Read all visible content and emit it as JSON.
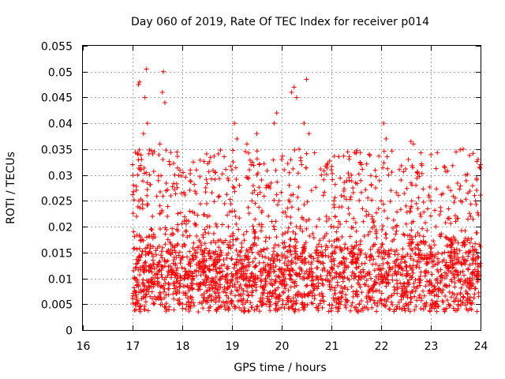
{
  "chart_data": {
    "type": "scatter",
    "title": "Day 060 of 2019, Rate Of TEC Index for receiver p014",
    "xlabel": "GPS time / hours",
    "ylabel": "ROTI / TECUs",
    "xlim": [
      16,
      24
    ],
    "ylim": [
      0,
      0.055
    ],
    "xticks": [
      16,
      17,
      18,
      19,
      20,
      21,
      22,
      23,
      24
    ],
    "xtick_labels": [
      "16",
      "17",
      "18",
      "19",
      "20",
      "21",
      "22",
      "23",
      "24"
    ],
    "yticks": [
      0,
      0.005,
      0.01,
      0.015,
      0.02,
      0.025,
      0.03,
      0.035,
      0.04,
      0.045,
      0.05,
      0.055
    ],
    "ytick_labels": [
      "0",
      "0.005",
      "0.01",
      "0.015",
      "0.02",
      "0.025",
      "0.03",
      "0.035",
      "0.04",
      "0.045",
      "0.05",
      "0.055"
    ],
    "grid": true,
    "marker": "+",
    "color": "#ff0000",
    "series": [
      {
        "name": "ROTI",
        "x": [
          17.0,
          17.02,
          17.04,
          17.06,
          17.08,
          17.1,
          17.12,
          17.14,
          17.16,
          17.18,
          17.2,
          17.22,
          17.25,
          17.28,
          17.3,
          17.33,
          17.36,
          17.4,
          17.45,
          17.5,
          17.55,
          17.6,
          17.62,
          17.65,
          17.7,
          17.75,
          17.8,
          17.85,
          17.9,
          17.95,
          18.0,
          18.05,
          18.1,
          18.15,
          18.2,
          18.3,
          18.4,
          18.5,
          18.55,
          18.6,
          18.7,
          18.8,
          18.9,
          19.0,
          19.05,
          19.1,
          19.15,
          19.2,
          19.3,
          19.35,
          19.4,
          19.45,
          19.5,
          19.55,
          19.6,
          19.7,
          19.8,
          19.85,
          19.9,
          19.95,
          20.0,
          20.05,
          20.1,
          20.15,
          20.2,
          20.25,
          20.3,
          20.35,
          20.4,
          20.45,
          20.5,
          20.55,
          20.6,
          20.7,
          20.8,
          20.9,
          21.0,
          21.05,
          21.1,
          21.2,
          21.3,
          21.4,
          21.5,
          21.6,
          21.7,
          21.8,
          21.9,
          22.0,
          22.05,
          22.1,
          22.15,
          22.2,
          22.3,
          22.4,
          22.5,
          22.55,
          22.6,
          22.65,
          22.7,
          22.8,
          22.9,
          23.0,
          23.1,
          23.2,
          23.3,
          23.4,
          23.5,
          23.6,
          23.65,
          23.7,
          23.8,
          23.9,
          23.95,
          24.0
        ],
        "y": [
          0.032,
          0.028,
          0.01,
          0.012,
          0.022,
          0.03,
          0.0475,
          0.048,
          0.018,
          0.033,
          0.025,
          0.038,
          0.045,
          0.0505,
          0.04,
          0.015,
          0.012,
          0.022,
          0.018,
          0.01,
          0.036,
          0.046,
          0.05,
          0.044,
          0.022,
          0.032,
          0.015,
          0.03,
          0.012,
          0.009,
          0.014,
          0.01,
          0.018,
          0.023,
          0.008,
          0.015,
          0.012,
          0.022,
          0.02,
          0.01,
          0.013,
          0.017,
          0.012,
          0.023,
          0.04,
          0.037,
          0.028,
          0.016,
          0.036,
          0.031,
          0.025,
          0.019,
          0.038,
          0.032,
          0.02,
          0.028,
          0.021,
          0.04,
          0.042,
          0.025,
          0.033,
          0.031,
          0.022,
          0.028,
          0.046,
          0.047,
          0.045,
          0.035,
          0.032,
          0.04,
          0.0485,
          0.038,
          0.027,
          0.02,
          0.03,
          0.022,
          0.031,
          0.025,
          0.019,
          0.026,
          0.021,
          0.03,
          0.017,
          0.032,
          0.023,
          0.028,
          0.019,
          0.025,
          0.04,
          0.037,
          0.03,
          0.027,
          0.02,
          0.029,
          0.024,
          0.033,
          0.0365,
          0.036,
          0.028,
          0.022,
          0.017,
          0.025,
          0.02,
          0.023,
          0.018,
          0.027,
          0.021,
          0.025,
          0.035,
          0.03,
          0.022,
          0.025,
          0.033,
          0.032
        ]
      }
    ],
    "bulk_distribution": {
      "description": "dense band of points between x 17 and 24 concentrated around ROTI 0.005-0.02",
      "x_range": [
        17.0,
        24.0
      ],
      "typical_min": 0.0035,
      "median": 0.0105,
      "typical_max": 0.02
    }
  }
}
